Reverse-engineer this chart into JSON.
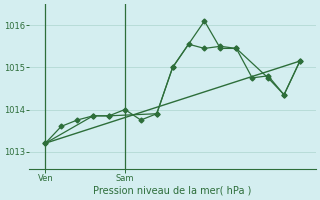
{
  "background_color": "#d4eef0",
  "grid_color": "#b8dcd8",
  "line_color": "#2d6e3a",
  "xlabel": "Pression niveau de la mer( hPa )",
  "ylim": [
    1012.6,
    1016.5
  ],
  "yticks": [
    1013,
    1014,
    1015,
    1016
  ],
  "xlim": [
    0,
    18
  ],
  "xtick_labels": [
    "Ven",
    "Sam"
  ],
  "xtick_positions": [
    1,
    6
  ],
  "vline_positions": [
    1,
    6
  ],
  "series1_x": [
    1,
    2,
    3,
    4,
    5,
    6,
    7,
    8,
    9,
    10,
    11,
    12,
    13,
    14,
    15,
    16,
    17
  ],
  "series1_y": [
    1013.2,
    1013.6,
    1013.75,
    1013.85,
    1013.85,
    1014.0,
    1013.75,
    1013.9,
    1015.0,
    1015.55,
    1015.45,
    1015.5,
    1015.45,
    1014.75,
    1014.8,
    1014.35,
    1015.15
  ],
  "series2_x": [
    1,
    4,
    5,
    8,
    9,
    11,
    12,
    13,
    15,
    16,
    17
  ],
  "series2_y": [
    1013.2,
    1013.85,
    1013.85,
    1013.9,
    1015.0,
    1016.1,
    1015.45,
    1015.45,
    1014.75,
    1014.35,
    1015.15
  ],
  "trend_x": [
    1,
    17
  ],
  "trend_y": [
    1013.2,
    1015.15
  ]
}
